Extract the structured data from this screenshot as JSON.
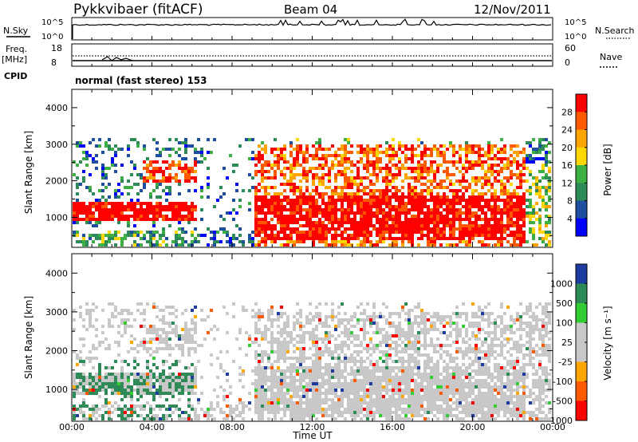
{
  "header": {
    "title": "Pykkvibaer (fitACF)",
    "beam": "Beam 04",
    "date": "12/Nov/2011"
  },
  "panel_labels": {
    "nsky": "N.Sky",
    "nsky_ticks": [
      "10^5",
      "10^0"
    ],
    "nsearch": "N.Search",
    "nsearch_ticks": [
      "10^5",
      "10^0"
    ],
    "freq_line1": "Freq.",
    "freq_line2": "[MHz]",
    "freq_ticks": [
      "18",
      "8"
    ],
    "nave": "Nave",
    "nave_ticks": [
      "60",
      "0"
    ],
    "cpid": "CPID",
    "cpid_value": "normal (fast stereo) 153"
  },
  "colorbar_power": {
    "label": "Power [dB]",
    "ticks": [
      "28",
      "24",
      "20",
      "16",
      "12",
      "8",
      "4"
    ],
    "colors": [
      "#ff0000",
      "#ff5a00",
      "#ffa500",
      "#ffd700",
      "#3cb043",
      "#2e8b57",
      "#1e4ea0",
      "#0000ff"
    ]
  },
  "colorbar_velocity": {
    "label": "Velocity [m s⁻¹]",
    "ticks": [
      "1000",
      "500",
      "100",
      "25",
      "-25",
      "-100",
      "-500",
      "-1000"
    ],
    "colors": [
      "#1e3ca0",
      "#2e8b57",
      "#32cd32",
      "#c8c8c8",
      "#c8c8c8",
      "#ffa500",
      "#ff5a00",
      "#ff0000"
    ]
  },
  "chart_data": [
    {
      "type": "heatmap",
      "panel": "power",
      "ylabel": "Slant Range [km]",
      "ylim": [
        180,
        4500
      ],
      "yticks": [
        "4000",
        "3000",
        "2000",
        "1000"
      ],
      "xticks": [
        "00:00",
        "04:00",
        "08:00",
        "12:00",
        "16:00",
        "20:00",
        "00:00"
      ],
      "colorbar": "Power [dB]"
    },
    {
      "type": "heatmap",
      "panel": "velocity",
      "ylabel": "Slant Range [km]",
      "ylim": [
        180,
        4500
      ],
      "yticks": [
        "4000",
        "3000",
        "2000",
        "1000"
      ],
      "xticks": [
        "00:00",
        "04:00",
        "08:00",
        "12:00",
        "16:00",
        "20:00",
        "00:00"
      ],
      "xlabel": "Time UT",
      "colorbar": "Velocity [m s⁻¹]"
    }
  ]
}
